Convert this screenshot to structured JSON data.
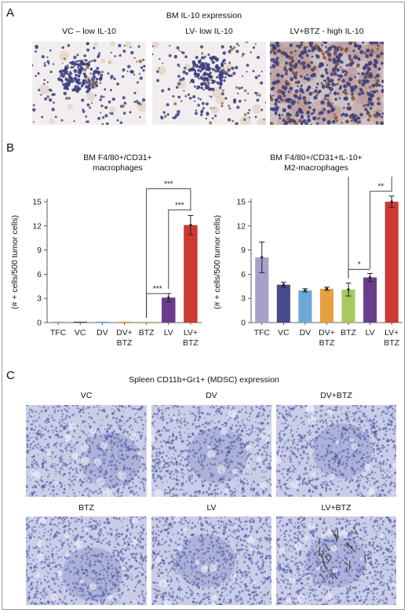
{
  "panelA": {
    "letter": "A",
    "title": "BM IL-10 expression",
    "images": [
      {
        "caption": "VC – low IL-10",
        "style": "sparse",
        "cluster": true
      },
      {
        "caption": "LV- low IL-10",
        "style": "sparse",
        "cluster": true
      },
      {
        "caption": "LV+BTZ - high IL-10",
        "style": "dense",
        "cluster": false
      }
    ]
  },
  "panelB": {
    "letter": "B",
    "ylabel": "(# + cells/500 tumor cells)",
    "yticks": [
      0,
      3,
      6,
      9,
      12,
      15
    ]
  },
  "chart_data": [
    {
      "type": "bar",
      "title": "BM F4/80+/CD31+",
      "subtitle": "macrophages",
      "ylabel": "(# + cells/500 tumor cells)",
      "ylim": [
        0,
        15
      ],
      "categories": [
        "TFC",
        "VC",
        "DV",
        "DV+\nBTZ",
        "BTZ",
        "LV",
        "LV+\nBTZ"
      ],
      "values": [
        0,
        0,
        0,
        0,
        0,
        3.1,
        12.1
      ],
      "errors": [
        0,
        0,
        0,
        0,
        0,
        0.5,
        1.2
      ],
      "colors": [
        "#a8a0c8",
        "#4a4a88",
        "#6ea8d8",
        "#e6a040",
        "#a8c860",
        "#6a3d8a",
        "#cc3a33"
      ],
      "significance": [
        {
          "from": 4,
          "to": 5,
          "label": "***",
          "level": 3.6
        },
        {
          "from": 5,
          "to": 6,
          "label": "***",
          "level": 14.0
        },
        {
          "from": 4,
          "to": 6,
          "label": "***",
          "level": 16.6
        }
      ]
    },
    {
      "type": "bar",
      "title": "BM F4/80+/CD31+IL-10+",
      "subtitle": "M2-macrophages",
      "ylabel": "(# + cells/500 tumor cells)",
      "ylim": [
        0,
        15
      ],
      "categories": [
        "TFC",
        "VC",
        "DV",
        "DV+\nBTZ",
        "BTZ",
        "LV",
        "LV+\nBTZ"
      ],
      "values": [
        8.1,
        4.7,
        4.0,
        4.2,
        4.1,
        5.6,
        15.0
      ],
      "errors": [
        1.9,
        0.3,
        0.2,
        0.2,
        0.8,
        0.5,
        0.7
      ],
      "colors": [
        "#a8a0c8",
        "#4a4a88",
        "#6ea8d8",
        "#e6a040",
        "#a8c860",
        "#6a3d8a",
        "#cc3a33"
      ],
      "significance": [
        {
          "from": 4,
          "to": 5,
          "label": "*",
          "level": 6.6
        },
        {
          "from": 5,
          "to": 6,
          "label": "**",
          "level": 16.3
        },
        {
          "from": 4,
          "to": 6,
          "label": "**",
          "level": 18.6
        }
      ]
    }
  ],
  "panelC": {
    "letter": "C",
    "title": "Spleen CD11b+Gr1+ (MDSC) expression",
    "images": [
      {
        "caption": "VC",
        "seed": 11,
        "spots": false
      },
      {
        "caption": "DV",
        "seed": 23,
        "spots": false
      },
      {
        "caption": "DV+BTZ",
        "seed": 37,
        "spots": false
      },
      {
        "caption": "BTZ",
        "seed": 41,
        "spots": false
      },
      {
        "caption": "LV",
        "seed": 53,
        "spots": false
      },
      {
        "caption": "LV+BTZ",
        "seed": 67,
        "spots": true
      }
    ]
  }
}
